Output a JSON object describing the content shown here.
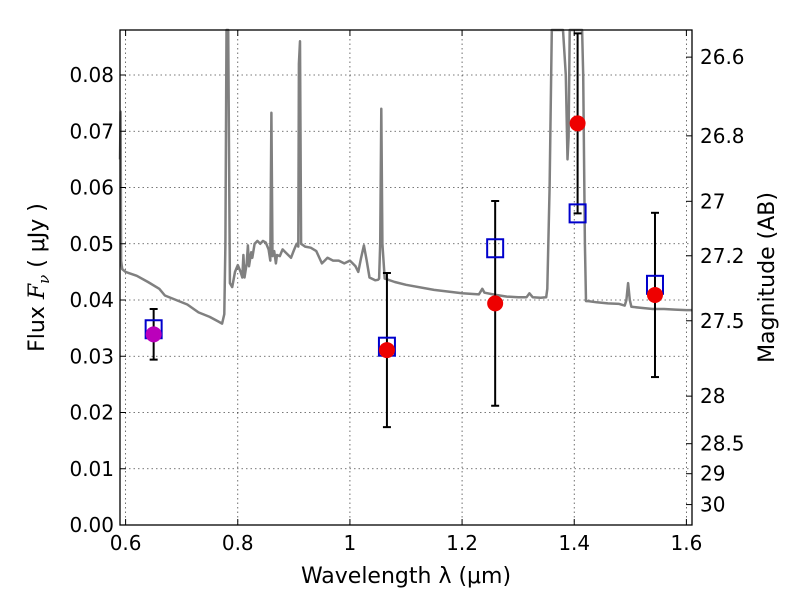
{
  "chart_data": {
    "type": "scatter",
    "xlabel": "Wavelength  λ (μm)",
    "ylabel_prefix": "Flux ",
    "ylabel_symbol": "F",
    "ylabel_subscript": "ν",
    "ylabel_suffix": "  ( μJy )",
    "y2label": "Magnitude (AB)",
    "xlim": [
      0.59,
      1.61
    ],
    "ylim": [
      0.0,
      0.088
    ],
    "grid": true,
    "x_ticks": [
      {
        "value": 0.6,
        "label": "0.6"
      },
      {
        "value": 0.8,
        "label": "0.8"
      },
      {
        "value": 1.0,
        "label": "1"
      },
      {
        "value": 1.2,
        "label": "1.2"
      },
      {
        "value": 1.4,
        "label": "1.4"
      },
      {
        "value": 1.6,
        "label": "1.6"
      }
    ],
    "y_ticks": [
      {
        "value": 0.0,
        "label": "0.00"
      },
      {
        "value": 0.01,
        "label": "0.01"
      },
      {
        "value": 0.02,
        "label": "0.02"
      },
      {
        "value": 0.03,
        "label": "0.03"
      },
      {
        "value": 0.04,
        "label": "0.04"
      },
      {
        "value": 0.05,
        "label": "0.05"
      },
      {
        "value": 0.06,
        "label": "0.06"
      },
      {
        "value": 0.07,
        "label": "0.07"
      },
      {
        "value": 0.08,
        "label": "0.08"
      }
    ],
    "mag_ticks": [
      {
        "value": 26.6,
        "label": "26.6"
      },
      {
        "value": 26.8,
        "label": "26.8"
      },
      {
        "value": 27.0,
        "label": "27"
      },
      {
        "value": 27.2,
        "label": "27.2"
      },
      {
        "value": 27.5,
        "label": "27.5"
      },
      {
        "value": 28.0,
        "label": "28"
      },
      {
        "value": 28.5,
        "label": "28.5"
      },
      {
        "value": 29.0,
        "label": "29"
      },
      {
        "value": 30.0,
        "label": "30"
      }
    ],
    "spectrum": {
      "color": "#808080",
      "points": [
        [
          0.59,
          0.065
        ],
        [
          0.591,
          0.0735
        ],
        [
          0.592,
          0.047
        ],
        [
          0.594,
          0.0455
        ],
        [
          0.6,
          0.045
        ],
        [
          0.62,
          0.0443
        ],
        [
          0.64,
          0.0432
        ],
        [
          0.66,
          0.042
        ],
        [
          0.67,
          0.0408
        ],
        [
          0.69,
          0.04
        ],
        [
          0.71,
          0.0392
        ],
        [
          0.73,
          0.0378
        ],
        [
          0.75,
          0.037
        ],
        [
          0.765,
          0.0362
        ],
        [
          0.772,
          0.0358
        ],
        [
          0.776,
          0.0375
        ],
        [
          0.778,
          0.05
        ],
        [
          0.78,
          0.088
        ],
        [
          0.783,
          0.088
        ],
        [
          0.786,
          0.043
        ],
        [
          0.79,
          0.0423
        ],
        [
          0.795,
          0.045
        ],
        [
          0.8,
          0.0462
        ],
        [
          0.805,
          0.045
        ],
        [
          0.808,
          0.044
        ],
        [
          0.81,
          0.048
        ],
        [
          0.812,
          0.044
        ],
        [
          0.816,
          0.0465
        ],
        [
          0.818,
          0.0497
        ],
        [
          0.82,
          0.046
        ],
        [
          0.824,
          0.0485
        ],
        [
          0.826,
          0.0475
        ],
        [
          0.83,
          0.05
        ],
        [
          0.835,
          0.0505
        ],
        [
          0.84,
          0.05
        ],
        [
          0.845,
          0.0505
        ],
        [
          0.85,
          0.0502
        ],
        [
          0.855,
          0.049
        ],
        [
          0.858,
          0.047
        ],
        [
          0.86,
          0.0733
        ],
        [
          0.862,
          0.0478
        ],
        [
          0.865,
          0.0487
        ],
        [
          0.868,
          0.0465
        ],
        [
          0.87,
          0.048
        ],
        [
          0.875,
          0.0478
        ],
        [
          0.88,
          0.049
        ],
        [
          0.885,
          0.0485
        ],
        [
          0.89,
          0.048
        ],
        [
          0.895,
          0.0475
        ],
        [
          0.9,
          0.0488
        ],
        [
          0.905,
          0.05
        ],
        [
          0.908,
          0.0495
        ],
        [
          0.909,
          0.082
        ],
        [
          0.911,
          0.086
        ],
        [
          0.913,
          0.05
        ],
        [
          0.92,
          0.0495
        ],
        [
          0.93,
          0.0493
        ],
        [
          0.94,
          0.0487
        ],
        [
          0.95,
          0.0465
        ],
        [
          0.955,
          0.047
        ],
        [
          0.96,
          0.0475
        ],
        [
          0.97,
          0.047
        ],
        [
          0.98,
          0.047
        ],
        [
          0.99,
          0.0465
        ],
        [
          1.0,
          0.047
        ],
        [
          1.005,
          0.0465
        ],
        [
          1.01,
          0.046
        ],
        [
          1.015,
          0.045
        ],
        [
          1.02,
          0.0475
        ],
        [
          1.025,
          0.0497
        ],
        [
          1.03,
          0.047
        ],
        [
          1.035,
          0.044
        ],
        [
          1.045,
          0.0435
        ],
        [
          1.05,
          0.0436
        ],
        [
          1.052,
          0.0438
        ],
        [
          1.054,
          0.05
        ],
        [
          1.056,
          0.074
        ],
        [
          1.058,
          0.05
        ],
        [
          1.062,
          0.0438
        ],
        [
          1.08,
          0.0432
        ],
        [
          1.1,
          0.0427
        ],
        [
          1.15,
          0.0418
        ],
        [
          1.2,
          0.0412
        ],
        [
          1.23,
          0.041
        ],
        [
          1.236,
          0.042
        ],
        [
          1.24,
          0.0413
        ],
        [
          1.26,
          0.0409
        ],
        [
          1.28,
          0.0406
        ],
        [
          1.3,
          0.0405
        ],
        [
          1.315,
          0.0405
        ],
        [
          1.32,
          0.0412
        ],
        [
          1.326,
          0.0405
        ],
        [
          1.34,
          0.0404
        ],
        [
          1.35,
          0.0405
        ],
        [
          1.352,
          0.042
        ],
        [
          1.356,
          0.06
        ],
        [
          1.36,
          0.088
        ],
        [
          1.375,
          0.088
        ],
        [
          1.38,
          0.088
        ],
        [
          1.385,
          0.08
        ],
        [
          1.388,
          0.065
        ],
        [
          1.39,
          0.069
        ],
        [
          1.392,
          0.088
        ],
        [
          1.414,
          0.088
        ],
        [
          1.416,
          0.08
        ],
        [
          1.419,
          0.05
        ],
        [
          1.421,
          0.0398
        ],
        [
          1.425,
          0.0398
        ],
        [
          1.44,
          0.0396
        ],
        [
          1.46,
          0.0394
        ],
        [
          1.48,
          0.0393
        ],
        [
          1.49,
          0.039
        ],
        [
          1.493,
          0.04
        ],
        [
          1.496,
          0.043
        ],
        [
          1.499,
          0.04
        ],
        [
          1.502,
          0.0388
        ],
        [
          1.52,
          0.0386
        ],
        [
          1.54,
          0.0384
        ],
        [
          1.56,
          0.0384
        ],
        [
          1.58,
          0.0383
        ],
        [
          1.6,
          0.0382
        ],
        [
          1.61,
          0.0382
        ]
      ]
    },
    "observed_points": [
      {
        "x": 0.65,
        "y": 0.0339,
        "err_low": 0.0045,
        "err_high": 0.0045,
        "color": "#bb00bb"
      },
      {
        "x": 1.066,
        "y": 0.0311,
        "err_low": 0.0137,
        "err_high": 0.0137,
        "color": "#ee0000"
      },
      {
        "x": 1.259,
        "y": 0.0394,
        "err_low": 0.0182,
        "err_high": 0.0182,
        "color": "#ee0000"
      },
      {
        "x": 1.406,
        "y": 0.0714,
        "err_low": 0.016,
        "err_high": 0.016,
        "color": "#ee0000"
      },
      {
        "x": 1.544,
        "y": 0.0409,
        "err_low": 0.0146,
        "err_high": 0.0146,
        "color": "#ee0000"
      }
    ],
    "model_points": {
      "color": "#0000cc",
      "points": [
        {
          "x": 0.65,
          "y": 0.0348
        },
        {
          "x": 1.066,
          "y": 0.0317
        },
        {
          "x": 1.259,
          "y": 0.0492
        },
        {
          "x": 1.406,
          "y": 0.0554
        },
        {
          "x": 1.544,
          "y": 0.0427
        }
      ]
    }
  }
}
